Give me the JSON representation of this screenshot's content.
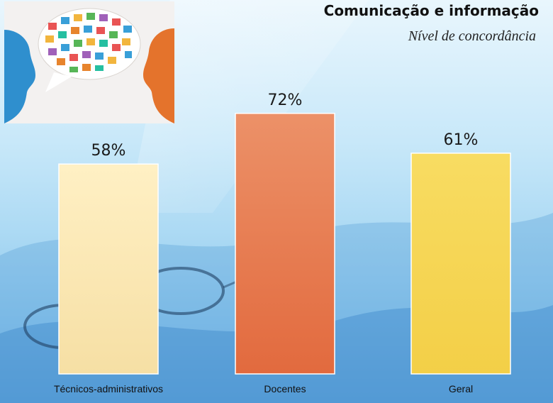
{
  "slide": {
    "title": "Comunicação e informação",
    "subtitle": "Nível de concordância",
    "logo": {
      "icon": "speech-bubble-icons-icon"
    }
  },
  "chart_data": {
    "type": "bar",
    "categories": [
      "Técnicos-administrativos",
      "Docentes",
      "Geral"
    ],
    "values": [
      58,
      72,
      61
    ],
    "data_labels": [
      "58%",
      "72%",
      "61%"
    ],
    "unit": "%",
    "ylim": [
      0,
      100
    ],
    "grid": false,
    "legend": "none",
    "colors": [
      "#fbe8b4",
      "#e87a52",
      "#f6d65a"
    ]
  }
}
